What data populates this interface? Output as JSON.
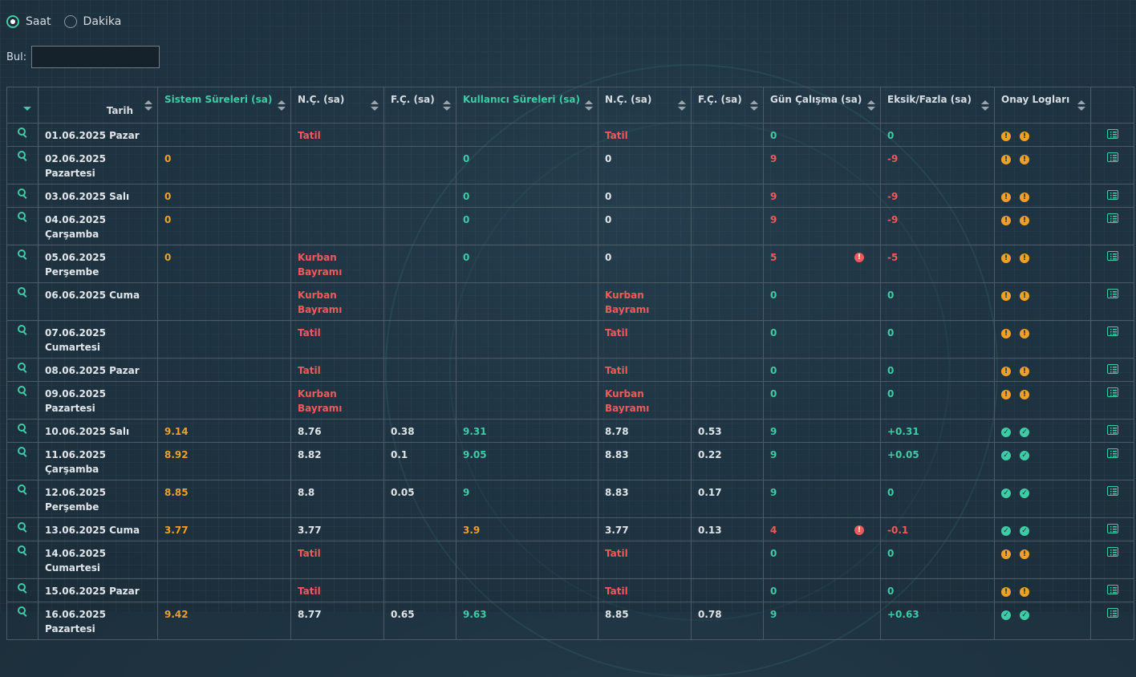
{
  "unit_toggle": {
    "options": [
      {
        "label": "Saat",
        "checked": true
      },
      {
        "label": "Dakika",
        "checked": false
      }
    ]
  },
  "search": {
    "label": "Bul:",
    "value": "",
    "placeholder": ""
  },
  "colors": {
    "accent": "#3ecba5",
    "warning": "#f0a028",
    "error": "#f05a5a",
    "text": "#dfe4e8"
  },
  "table": {
    "columns": [
      {
        "key": "expand",
        "label": "",
        "icon": "sort-caret-icon"
      },
      {
        "key": "tarih",
        "label": "Tarih"
      },
      {
        "key": "sistem",
        "label": "Sistem Süreleri (sa)",
        "green": true
      },
      {
        "key": "nc1",
        "label": "N.Ç. (sa)"
      },
      {
        "key": "fc1",
        "label": "F.Ç. (sa)"
      },
      {
        "key": "kullanici",
        "label": "Kullanıcı Süreleri (sa)",
        "green": true
      },
      {
        "key": "nc2",
        "label": "N.Ç. (sa)"
      },
      {
        "key": "fc2",
        "label": "F.Ç. (sa)"
      },
      {
        "key": "gun",
        "label": "Gün Çalışma (sa)"
      },
      {
        "key": "eksik",
        "label": "Eksik/Fazla (sa)"
      },
      {
        "key": "onay",
        "label": "Onay Logları"
      },
      {
        "key": "act",
        "label": ""
      }
    ],
    "rows": [
      {
        "tarih": "01.06.2025 Pazar",
        "sistem": "",
        "sistem_c": "or",
        "nc1": "Tatil",
        "nc1_c": "rd",
        "fc1": "",
        "kullanici": "",
        "kullanici_c": "gr",
        "nc2": "Tatil",
        "nc2_c": "rd",
        "fc2": "",
        "gun": "0",
        "gun_c": "gr",
        "gun_err": false,
        "eksik": "0",
        "eksik_c": "gr",
        "onay": [
          "pending",
          "pending"
        ]
      },
      {
        "tarih": "02.06.2025 Pazartesi",
        "sistem": "0",
        "sistem_c": "or",
        "nc1": "",
        "nc1_c": "wh",
        "fc1": "",
        "kullanici": "0",
        "kullanici_c": "gr",
        "nc2": "0",
        "nc2_c": "wh",
        "fc2": "",
        "gun": "9",
        "gun_c": "rd",
        "gun_err": false,
        "eksik": "-9",
        "eksik_c": "rd",
        "onay": [
          "pending",
          "pending"
        ]
      },
      {
        "tarih": "03.06.2025 Salı",
        "sistem": "0",
        "sistem_c": "or",
        "nc1": "",
        "nc1_c": "wh",
        "fc1": "",
        "kullanici": "0",
        "kullanici_c": "gr",
        "nc2": "0",
        "nc2_c": "wh",
        "fc2": "",
        "gun": "9",
        "gun_c": "rd",
        "gun_err": false,
        "eksik": "-9",
        "eksik_c": "rd",
        "onay": [
          "pending",
          "pending"
        ]
      },
      {
        "tarih": "04.06.2025 Çarşamba",
        "sistem": "0",
        "sistem_c": "or",
        "nc1": "",
        "nc1_c": "wh",
        "fc1": "",
        "kullanici": "0",
        "kullanici_c": "gr",
        "nc2": "0",
        "nc2_c": "wh",
        "fc2": "",
        "gun": "9",
        "gun_c": "rd",
        "gun_err": false,
        "eksik": "-9",
        "eksik_c": "rd",
        "onay": [
          "pending",
          "pending"
        ]
      },
      {
        "tarih": "05.06.2025 Perşembe",
        "sistem": "0",
        "sistem_c": "or",
        "nc1": "Kurban Bayramı",
        "nc1_c": "rd",
        "fc1": "",
        "kullanici": "0",
        "kullanici_c": "gr",
        "nc2": "0",
        "nc2_c": "wh",
        "fc2": "",
        "gun": "5",
        "gun_c": "rd",
        "gun_err": true,
        "eksik": "-5",
        "eksik_c": "rd",
        "onay": [
          "pending",
          "pending"
        ]
      },
      {
        "tarih": "06.06.2025 Cuma",
        "sistem": "",
        "sistem_c": "or",
        "nc1": "Kurban Bayramı",
        "nc1_c": "rd",
        "fc1": "",
        "kullanici": "",
        "kullanici_c": "gr",
        "nc2": "Kurban Bayramı",
        "nc2_c": "rd",
        "fc2": "",
        "gun": "0",
        "gun_c": "gr",
        "gun_err": false,
        "eksik": "0",
        "eksik_c": "gr",
        "onay": [
          "pending",
          "pending"
        ]
      },
      {
        "tarih": "07.06.2025 Cumartesi",
        "sistem": "",
        "sistem_c": "or",
        "nc1": "Tatil",
        "nc1_c": "rd",
        "fc1": "",
        "kullanici": "",
        "kullanici_c": "gr",
        "nc2": "Tatil",
        "nc2_c": "rd",
        "fc2": "",
        "gun": "0",
        "gun_c": "gr",
        "gun_err": false,
        "eksik": "0",
        "eksik_c": "gr",
        "onay": [
          "pending",
          "pending"
        ]
      },
      {
        "tarih": "08.06.2025 Pazar",
        "sistem": "",
        "sistem_c": "or",
        "nc1": "Tatil",
        "nc1_c": "rd",
        "fc1": "",
        "kullanici": "",
        "kullanici_c": "gr",
        "nc2": "Tatil",
        "nc2_c": "rd",
        "fc2": "",
        "gun": "0",
        "gun_c": "gr",
        "gun_err": false,
        "eksik": "0",
        "eksik_c": "gr",
        "onay": [
          "pending",
          "pending"
        ]
      },
      {
        "tarih": "09.06.2025 Pazartesi",
        "sistem": "",
        "sistem_c": "or",
        "nc1": "Kurban Bayramı",
        "nc1_c": "rd",
        "fc1": "",
        "kullanici": "",
        "kullanici_c": "gr",
        "nc2": "Kurban Bayramı",
        "nc2_c": "rd",
        "fc2": "",
        "gun": "0",
        "gun_c": "gr",
        "gun_err": false,
        "eksik": "0",
        "eksik_c": "gr",
        "onay": [
          "pending",
          "pending"
        ]
      },
      {
        "tarih": "10.06.2025 Salı",
        "sistem": "9.14",
        "sistem_c": "or",
        "nc1": "8.76",
        "nc1_c": "wh",
        "fc1": "0.38",
        "kullanici": "9.31",
        "kullanici_c": "gr",
        "nc2": "8.78",
        "nc2_c": "wh",
        "fc2": "0.53",
        "gun": "9",
        "gun_c": "gr",
        "gun_err": false,
        "eksik": "+0.31",
        "eksik_c": "gr",
        "onay": [
          "ok",
          "ok"
        ]
      },
      {
        "tarih": "11.06.2025 Çarşamba",
        "sistem": "8.92",
        "sistem_c": "or",
        "nc1": "8.82",
        "nc1_c": "wh",
        "fc1": "0.1",
        "kullanici": "9.05",
        "kullanici_c": "gr",
        "nc2": "8.83",
        "nc2_c": "wh",
        "fc2": "0.22",
        "gun": "9",
        "gun_c": "gr",
        "gun_err": false,
        "eksik": "+0.05",
        "eksik_c": "gr",
        "onay": [
          "ok",
          "ok"
        ]
      },
      {
        "tarih": "12.06.2025 Perşembe",
        "sistem": "8.85",
        "sistem_c": "or",
        "nc1": "8.8",
        "nc1_c": "wh",
        "fc1": "0.05",
        "kullanici": "9",
        "kullanici_c": "gr",
        "nc2": "8.83",
        "nc2_c": "wh",
        "fc2": "0.17",
        "gun": "9",
        "gun_c": "gr",
        "gun_err": false,
        "eksik": "0",
        "eksik_c": "gr",
        "onay": [
          "ok",
          "ok"
        ]
      },
      {
        "tarih": "13.06.2025 Cuma",
        "sistem": "3.77",
        "sistem_c": "or",
        "nc1": "3.77",
        "nc1_c": "wh",
        "fc1": "",
        "kullanici": "3.9",
        "kullanici_c": "or",
        "nc2": "3.77",
        "nc2_c": "wh",
        "fc2": "0.13",
        "gun": "4",
        "gun_c": "rd",
        "gun_err": true,
        "eksik": "-0.1",
        "eksik_c": "rd",
        "onay": [
          "ok",
          "ok"
        ]
      },
      {
        "tarih": "14.06.2025 Cumartesi",
        "sistem": "",
        "sistem_c": "or",
        "nc1": "Tatil",
        "nc1_c": "rd",
        "fc1": "",
        "kullanici": "",
        "kullanici_c": "gr",
        "nc2": "Tatil",
        "nc2_c": "rd",
        "fc2": "",
        "gun": "0",
        "gun_c": "gr",
        "gun_err": false,
        "eksik": "0",
        "eksik_c": "gr",
        "onay": [
          "pending",
          "pending"
        ]
      },
      {
        "tarih": "15.06.2025 Pazar",
        "sistem": "",
        "sistem_c": "or",
        "nc1": "Tatil",
        "nc1_c": "rd",
        "fc1": "",
        "kullanici": "",
        "kullanici_c": "gr",
        "nc2": "Tatil",
        "nc2_c": "rd",
        "fc2": "",
        "gun": "0",
        "gun_c": "gr",
        "gun_err": false,
        "eksik": "0",
        "eksik_c": "gr",
        "onay": [
          "pending",
          "pending"
        ]
      },
      {
        "tarih": "16.06.2025 Pazartesi",
        "sistem": "9.42",
        "sistem_c": "or",
        "nc1": "8.77",
        "nc1_c": "wh",
        "fc1": "0.65",
        "kullanici": "9.63",
        "kullanici_c": "gr",
        "nc2": "8.85",
        "nc2_c": "wh",
        "fc2": "0.78",
        "gun": "9",
        "gun_c": "gr",
        "gun_err": false,
        "eksik": "+0.63",
        "eksik_c": "gr",
        "onay": [
          "ok",
          "ok"
        ]
      }
    ]
  }
}
